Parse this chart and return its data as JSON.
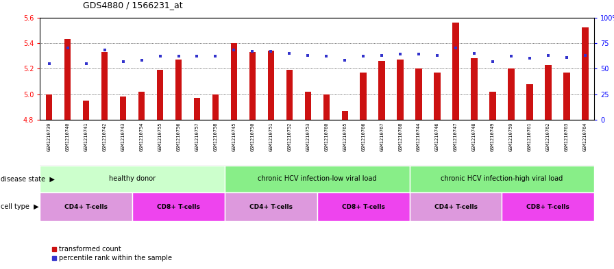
{
  "title": "GDS4880 / 1566231_at",
  "samples": [
    "GSM1210739",
    "GSM1210740",
    "GSM1210741",
    "GSM1210742",
    "GSM1210743",
    "GSM1210754",
    "GSM1210755",
    "GSM1210756",
    "GSM1210757",
    "GSM1210758",
    "GSM1210745",
    "GSM1210750",
    "GSM1210751",
    "GSM1210752",
    "GSM1210753",
    "GSM1210760",
    "GSM1210765",
    "GSM1210766",
    "GSM1210767",
    "GSM1210768",
    "GSM1210744",
    "GSM1210746",
    "GSM1210747",
    "GSM1210748",
    "GSM1210749",
    "GSM1210759",
    "GSM1210761",
    "GSM1210762",
    "GSM1210763",
    "GSM1210764"
  ],
  "transformed_count": [
    5.0,
    5.43,
    4.95,
    5.33,
    4.98,
    5.02,
    5.19,
    5.27,
    4.97,
    5.0,
    5.4,
    5.33,
    5.34,
    5.19,
    5.02,
    5.0,
    4.87,
    5.17,
    5.26,
    5.27,
    5.2,
    5.17,
    5.56,
    5.28,
    5.02,
    5.2,
    5.08,
    5.23,
    5.17,
    5.52
  ],
  "percentile_rank": [
    55,
    70,
    55,
    68,
    57,
    58,
    62,
    62,
    62,
    62,
    68,
    67,
    67,
    65,
    63,
    62,
    58,
    62,
    63,
    64,
    64,
    63,
    70,
    65,
    57,
    62,
    60,
    63,
    61,
    63
  ],
  "ylim_left": [
    4.8,
    5.6
  ],
  "ylim_right": [
    0,
    100
  ],
  "yticks_left": [
    4.8,
    5.0,
    5.2,
    5.4,
    5.6
  ],
  "yticks_right": [
    0,
    25,
    50,
    75,
    100
  ],
  "ytick_right_labels": [
    "0",
    "25",
    "50",
    "75",
    "100%"
  ],
  "bar_color": "#cc1111",
  "dot_color": "#3333cc",
  "bar_bottom": 4.8,
  "disease_groups": [
    {
      "label": "healthy donor",
      "start": 0,
      "end": 10,
      "color": "#ccffcc"
    },
    {
      "label": "chronic HCV infection-low viral load",
      "start": 10,
      "end": 20,
      "color": "#88ee88"
    },
    {
      "label": "chronic HCV infection-high viral load",
      "start": 20,
      "end": 30,
      "color": "#88ee88"
    }
  ],
  "cell_groups": [
    {
      "label": "CD4+ T-cells",
      "start": 0,
      "end": 5,
      "color": "#dd99dd"
    },
    {
      "label": "CD8+ T-cells",
      "start": 5,
      "end": 10,
      "color": "#ee44ee"
    },
    {
      "label": "CD4+ T-cells",
      "start": 10,
      "end": 15,
      "color": "#dd99dd"
    },
    {
      "label": "CD8+ T-cells",
      "start": 15,
      "end": 20,
      "color": "#ee44ee"
    },
    {
      "label": "CD4+ T-cells",
      "start": 20,
      "end": 25,
      "color": "#dd99dd"
    },
    {
      "label": "CD8+ T-cells",
      "start": 25,
      "end": 30,
      "color": "#ee44ee"
    }
  ],
  "xtick_bg": "#cccccc",
  "legend_items": [
    {
      "label": "transformed count",
      "color": "#cc1111"
    },
    {
      "label": "percentile rank within the sample",
      "color": "#3333cc"
    }
  ]
}
